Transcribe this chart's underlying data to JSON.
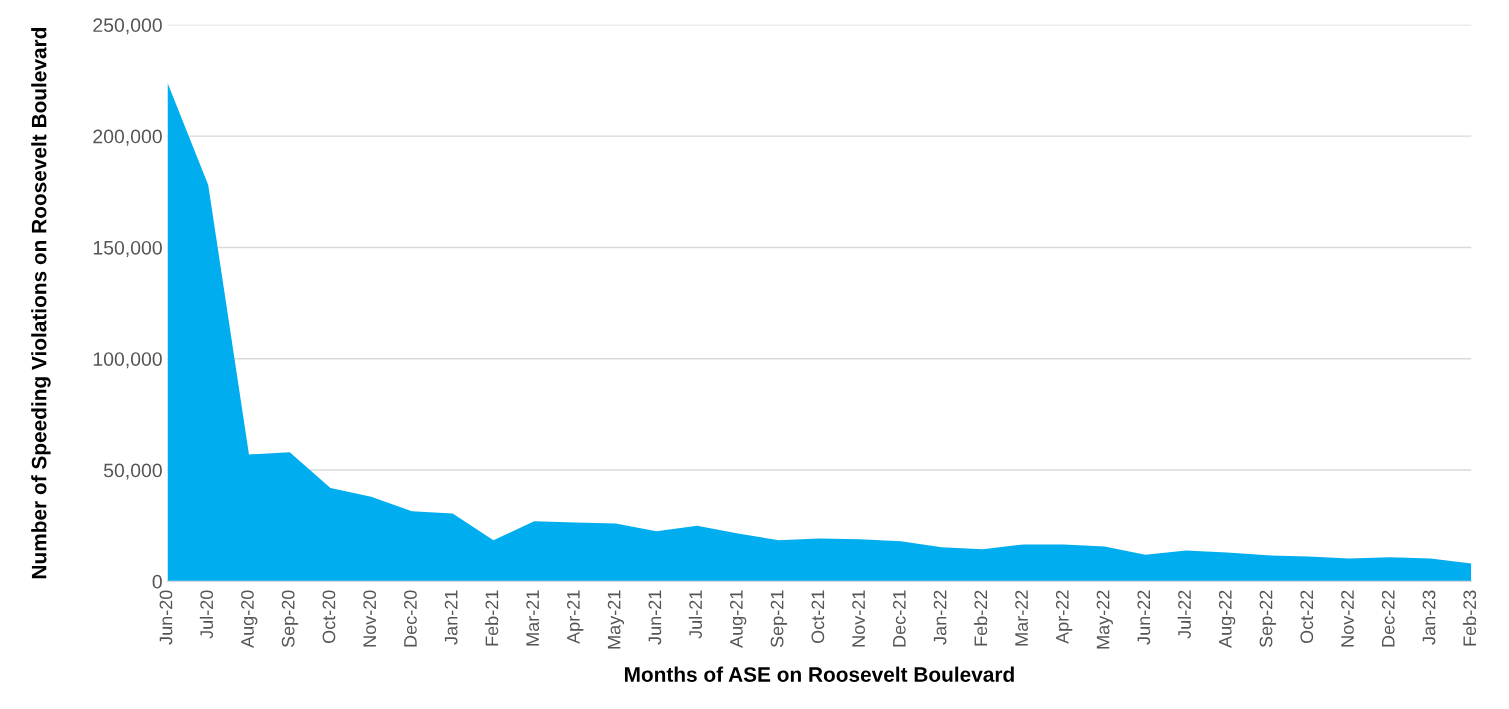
{
  "chart_data": {
    "type": "area",
    "xlabel": "Months of ASE on Roosevelt Boulevard",
    "ylabel": "Number of Speeding Violations on Roosevelt Boulevard",
    "categories": [
      "Jun-20",
      "Jul-20",
      "Aug-20",
      "Sep-20",
      "Oct-20",
      "Nov-20",
      "Dec-20",
      "Jan-21",
      "Feb-21",
      "Mar-21",
      "Apr-21",
      "May-21",
      "Jun-21",
      "Jul-21",
      "Aug-21",
      "Sep-21",
      "Oct-21",
      "Nov-21",
      "Dec-21",
      "Jan-22",
      "Feb-22",
      "Mar-22",
      "Apr-22",
      "May-22",
      "Jun-22",
      "Jul-22",
      "Aug-22",
      "Sep-22",
      "Oct-22",
      "Nov-22",
      "Dec-22",
      "Jan-23",
      "Feb-23"
    ],
    "series": [
      {
        "color": "#00aeef",
        "values": [
          224000,
          178000,
          57000,
          58000,
          42000,
          38000,
          31500,
          30500,
          18500,
          27000,
          26500,
          26000,
          22500,
          25000,
          21500,
          18500,
          19300,
          18900,
          18000,
          15300,
          14400,
          16600,
          16600,
          15700,
          12000,
          13900,
          13000,
          11700,
          11200,
          10300,
          10800,
          10300,
          8000
        ]
      }
    ],
    "ylim": [
      0,
      250000
    ],
    "yticks": [
      0,
      {
        "value": 50000,
        "label": "50,000"
      },
      {
        "value": 100000,
        "label": "100,000"
      },
      {
        "value": 150000,
        "label": "150,000"
      },
      {
        "value": 200000,
        "label": "200,000"
      },
      {
        "value": 250000,
        "label": "250,000"
      }
    ],
    "grid": "y",
    "legend": false
  }
}
